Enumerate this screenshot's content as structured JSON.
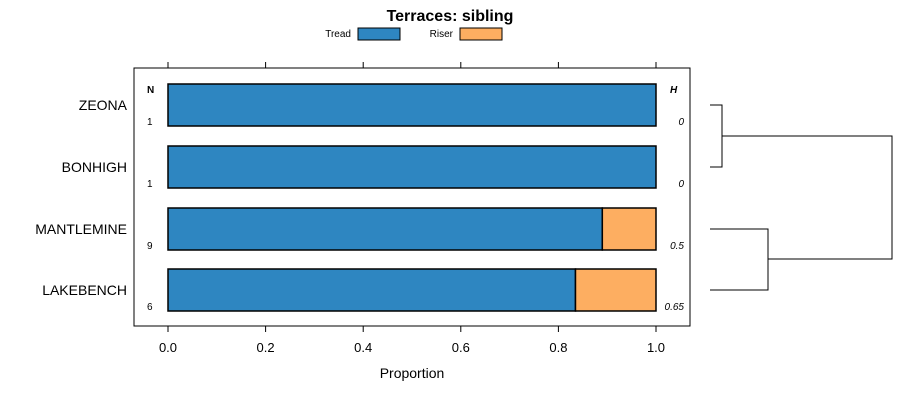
{
  "chart_data": {
    "type": "bar",
    "stacked": true,
    "orientation": "horizontal",
    "title": "Terraces: sibling",
    "xlabel": "Proportion",
    "ylabel": "",
    "xlim": [
      0,
      1
    ],
    "x_ticks": [
      "0.0",
      "0.2",
      "0.4",
      "0.6",
      "0.8",
      "1.0"
    ],
    "categories": [
      "ZEONA",
      "BONHIGH",
      "MANTLEMINE",
      "LAKEBENCH"
    ],
    "series": [
      {
        "name": "Tread",
        "color": "#2e86c1",
        "values": [
          1.0,
          1.0,
          0.89,
          0.835
        ]
      },
      {
        "name": "Riser",
        "color": "#fdae61",
        "values": [
          0.0,
          0.0,
          0.11,
          0.165
        ]
      }
    ],
    "n_header": "N",
    "h_header": "H",
    "n_values": [
      "1",
      "1",
      "9",
      "6"
    ],
    "h_values": [
      "0",
      "0",
      "0.5",
      "0.65"
    ],
    "legend_position": "top",
    "dendrogram": "clusters ZEONA+BONHIGH and MANTLEMINE+LAKEBENCH, joined at root"
  }
}
